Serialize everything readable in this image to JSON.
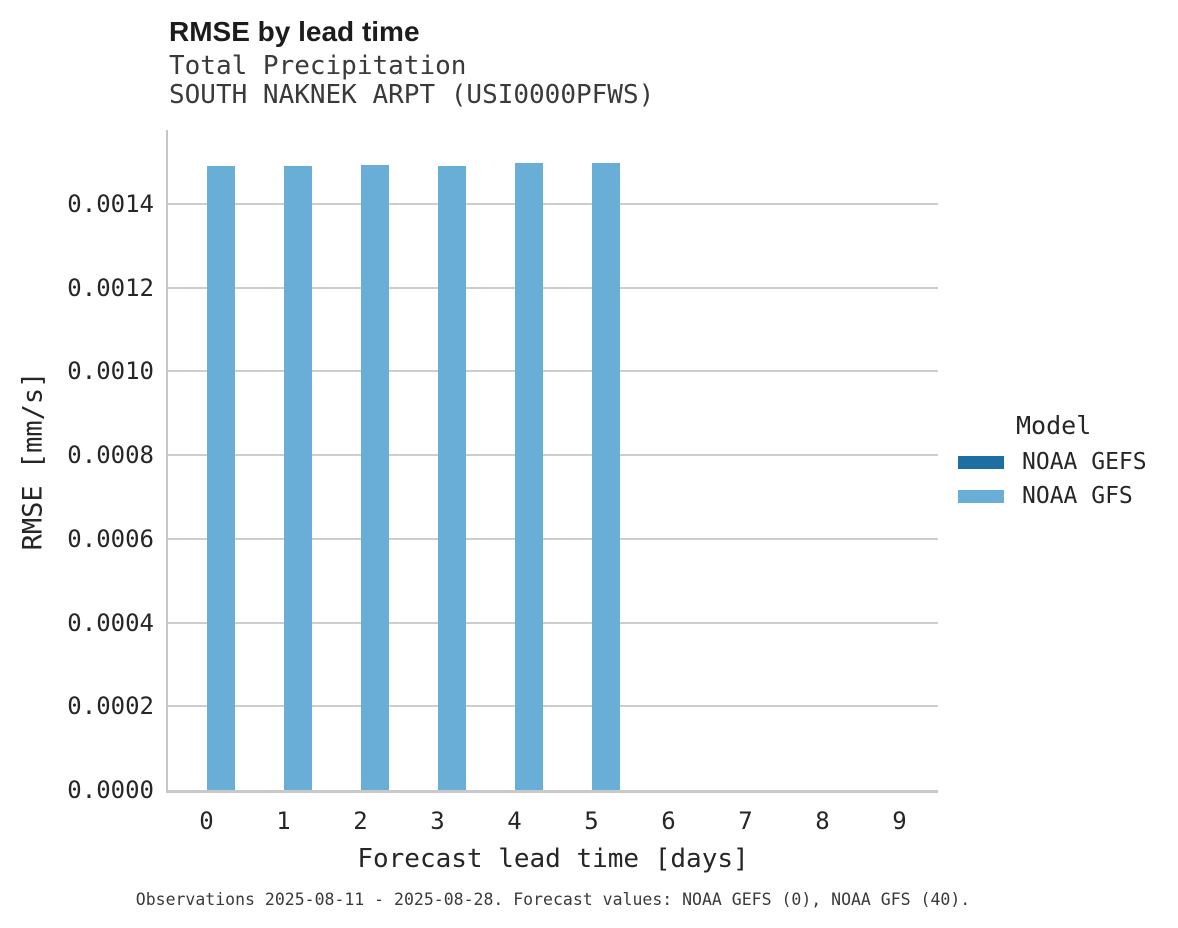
{
  "header": {
    "title": "RMSE by lead time",
    "subtitle_line1": "Total Precipitation",
    "subtitle_line2": "SOUTH NAKNEK ARPT (USI0000PFWS)"
  },
  "legend": {
    "title": "Model",
    "items": [
      {
        "label": "NOAA GEFS",
        "color": "#1c6fa0"
      },
      {
        "label": "NOAA GFS",
        "color": "#68aed6"
      }
    ]
  },
  "caption": "Observations 2025-08-11 - 2025-08-28. Forecast values: NOAA GEFS (0), NOAA GFS (40).",
  "chart_data": {
    "type": "bar",
    "title": "RMSE by lead time",
    "subtitle": [
      "Total Precipitation",
      "SOUTH NAKNEK ARPT (USI0000PFWS)"
    ],
    "xlabel": "Forecast lead time [days]",
    "ylabel": "RMSE [mm/s]",
    "categories": [
      0,
      1,
      2,
      3,
      4,
      5,
      6,
      7,
      8,
      9
    ],
    "series": [
      {
        "name": "NOAA GEFS",
        "color": "#1c6fa0",
        "values": [
          null,
          null,
          null,
          null,
          null,
          null,
          null,
          null,
          null,
          null
        ]
      },
      {
        "name": "NOAA GFS",
        "color": "#68aed6",
        "values": [
          0.001491,
          0.00149,
          0.001494,
          0.00149,
          0.001497,
          0.001497,
          null,
          null,
          null,
          null
        ]
      }
    ],
    "y_ticks": [
      0.0,
      0.0002,
      0.0004,
      0.0006,
      0.0008,
      0.001,
      0.0012,
      0.0014
    ],
    "y_tick_labels": [
      "0.0000",
      "0.0002",
      "0.0004",
      "0.0006",
      "0.0008",
      "0.0010",
      "0.0012",
      "0.0014"
    ],
    "ylim": [
      0,
      0.001577
    ],
    "grid": true,
    "legend_position": "right",
    "legend_title": "Model"
  }
}
